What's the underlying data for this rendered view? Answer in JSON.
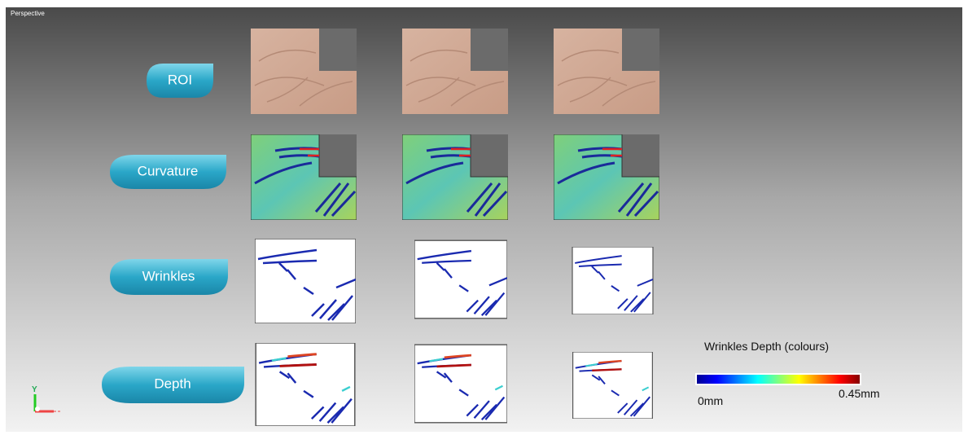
{
  "viewport": {
    "mode": "Perspective"
  },
  "steps": [
    {
      "label": "ROI"
    },
    {
      "label": "Curvature"
    },
    {
      "label": "Wrinkles"
    },
    {
      "label": "Depth"
    }
  ],
  "legend": {
    "title": "Wrinkles Depth (colours)",
    "min_label": "0mm",
    "max_label": "0.45mm"
  },
  "axes_triad": {
    "label": "Y"
  }
}
